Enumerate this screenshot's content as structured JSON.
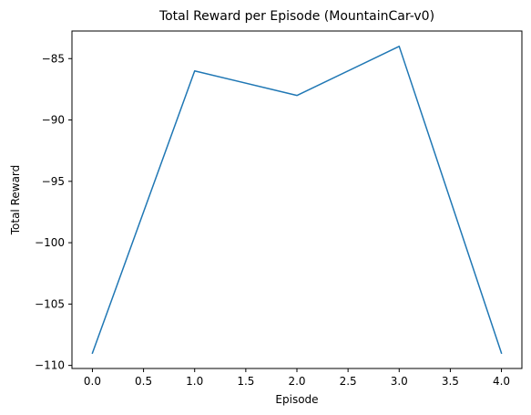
{
  "chart_data": {
    "type": "line",
    "title": "Total Reward per Episode (MountainCar-v0)",
    "xlabel": "Episode",
    "ylabel": "Total Reward",
    "x": [
      0,
      1,
      2,
      3,
      4
    ],
    "series": [
      {
        "values": [
          -109,
          -86,
          -88,
          -84,
          -109
        ],
        "color": "#1f77b4"
      }
    ],
    "xlim": [
      -0.2,
      4.2
    ],
    "ylim": [
      -110.25,
      -82.75
    ],
    "xticks": [
      0,
      0.5,
      1,
      1.5,
      2,
      2.5,
      3,
      3.5,
      4
    ],
    "xtick_labels": [
      "0.0",
      "0.5",
      "1.0",
      "1.5",
      "2.0",
      "2.5",
      "3.0",
      "3.5",
      "4.0"
    ],
    "yticks": [
      -110,
      -105,
      -100,
      -95,
      -90,
      -85
    ],
    "ytick_labels": [
      "−110",
      "−105",
      "−100",
      "−95",
      "−90",
      "−85"
    ],
    "grid": false,
    "legend": false
  }
}
